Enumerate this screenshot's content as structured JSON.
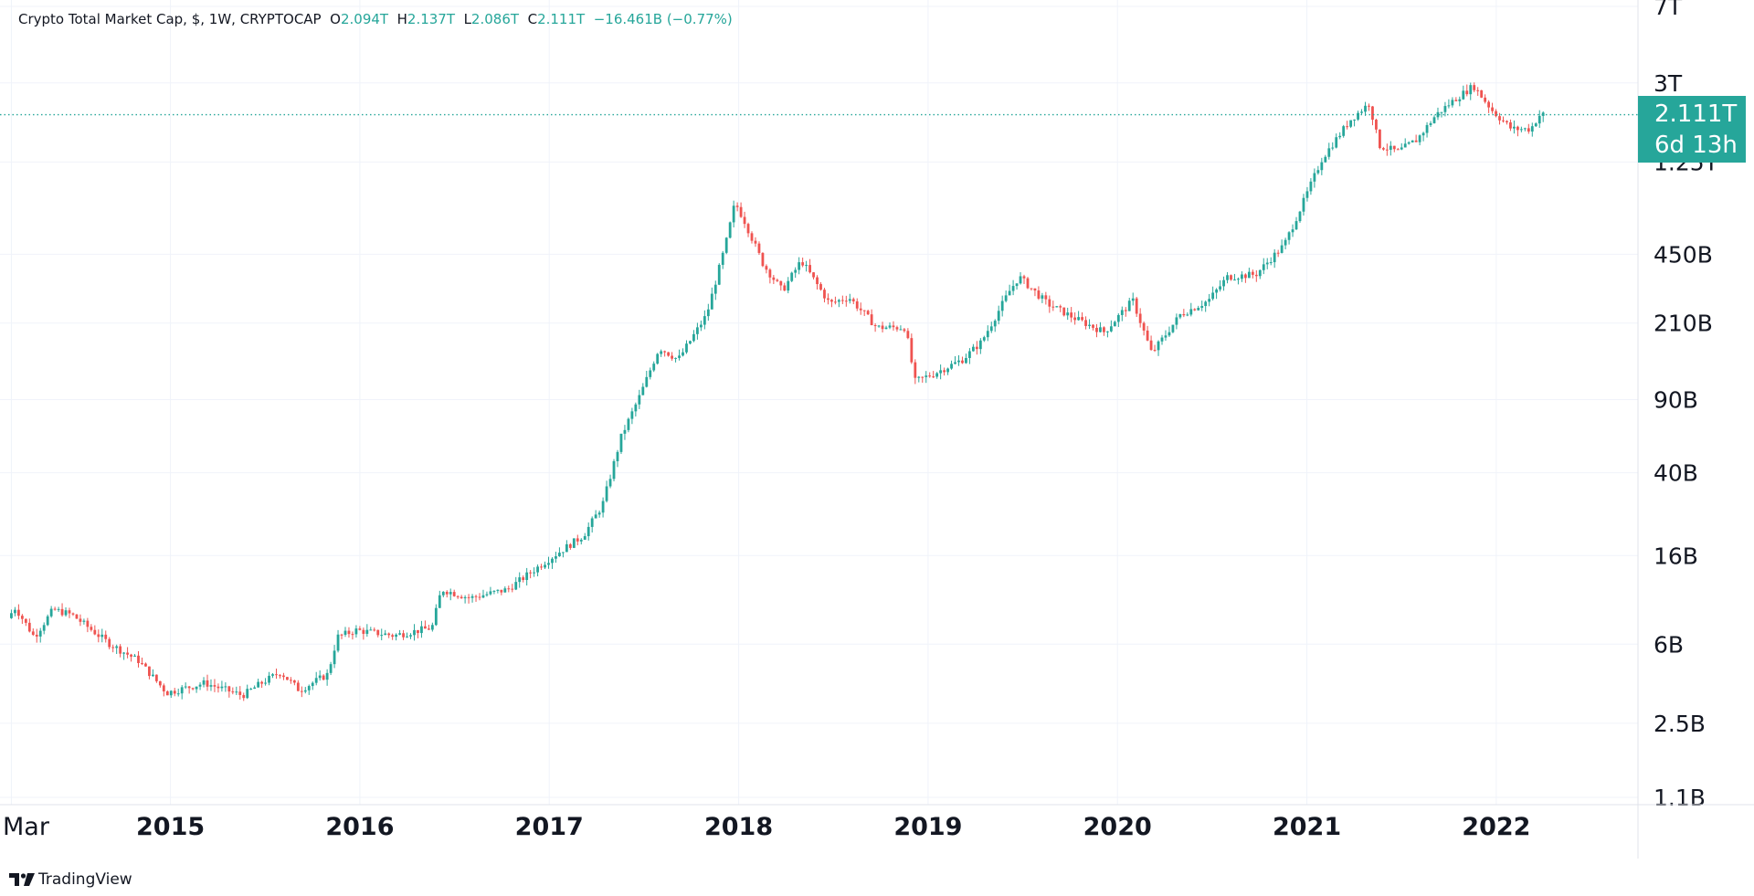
{
  "header": {
    "symbol_title": "Crypto Total Market Cap, $, 1W, CRYPTOCAP",
    "o_key": "O",
    "o_val": "2.094T",
    "h_key": "H",
    "h_val": "2.137T",
    "l_key": "L",
    "l_val": "2.086T",
    "c_key": "C",
    "c_val": "2.111T",
    "change": "−16.461B (−0.77%)"
  },
  "price_label": {
    "value": "2.111T",
    "countdown": "6d 13h"
  },
  "footer": {
    "brand": "TradingView"
  },
  "colors": {
    "up": "#26a69a",
    "down": "#ef5350",
    "grid": "#f0f3fa",
    "axis_text": "#131722",
    "dotted_line": "#26a69a"
  },
  "chart_data": {
    "type": "candlestick",
    "title": "Crypto Total Market Cap, $, 1W, CRYPTOCAP",
    "scale": "log",
    "ylim": [
      1000000000,
      7000000000000
    ],
    "y_ticks": [
      {
        "label": "7T",
        "value": 7000000000000
      },
      {
        "label": "3T",
        "value": 3000000000000
      },
      {
        "label": "1.25T",
        "value": 1250000000000
      },
      {
        "label": "450B",
        "value": 450000000000
      },
      {
        "label": "210B",
        "value": 210000000000
      },
      {
        "label": "90B",
        "value": 90000000000
      },
      {
        "label": "40B",
        "value": 40000000000
      },
      {
        "label": "16B",
        "value": 16000000000
      },
      {
        "label": "6B",
        "value": 6000000000
      },
      {
        "label": "2.5B",
        "value": 2500000000
      },
      {
        "label": "1.1B",
        "value": 1100000000
      }
    ],
    "x_range": [
      2014.15,
      2022.45
    ],
    "x_ticks": [
      {
        "label": "Mar",
        "value": 2014.16
      },
      {
        "label": "2015",
        "value": 2015.0
      },
      {
        "label": "2016",
        "value": 2016.0
      },
      {
        "label": "2017",
        "value": 2017.0
      },
      {
        "label": "2018",
        "value": 2018.0
      },
      {
        "label": "2019",
        "value": 2019.0
      },
      {
        "label": "2020",
        "value": 2020.0
      },
      {
        "label": "2021",
        "value": 2021.0
      },
      {
        "label": "2022",
        "value": 2022.0
      }
    ],
    "last_price": 2111000000000,
    "path_points": [
      [
        2014.16,
        8000000000
      ],
      [
        2014.2,
        9000000000
      ],
      [
        2014.3,
        6500000000
      ],
      [
        2014.4,
        8800000000
      ],
      [
        2014.5,
        8300000000
      ],
      [
        2014.7,
        6000000000
      ],
      [
        2014.85,
        5000000000
      ],
      [
        2015.0,
        3500000000
      ],
      [
        2015.2,
        3900000000
      ],
      [
        2015.4,
        3400000000
      ],
      [
        2015.5,
        3900000000
      ],
      [
        2015.6,
        4400000000
      ],
      [
        2015.7,
        3600000000
      ],
      [
        2015.85,
        4300000000
      ],
      [
        2015.9,
        6500000000
      ],
      [
        2016.0,
        7000000000
      ],
      [
        2016.2,
        6600000000
      ],
      [
        2016.4,
        7200000000
      ],
      [
        2016.45,
        11000000000
      ],
      [
        2016.6,
        10000000000
      ],
      [
        2016.8,
        11000000000
      ],
      [
        2017.0,
        15000000000
      ],
      [
        2017.2,
        20000000000
      ],
      [
        2017.3,
        28000000000
      ],
      [
        2017.4,
        60000000000
      ],
      [
        2017.5,
        95000000000
      ],
      [
        2017.6,
        160000000000
      ],
      [
        2017.7,
        140000000000
      ],
      [
        2017.85,
        230000000000
      ],
      [
        2017.95,
        500000000000
      ],
      [
        2018.0,
        800000000000
      ],
      [
        2018.05,
        650000000000
      ],
      [
        2018.15,
        400000000000
      ],
      [
        2018.25,
        300000000000
      ],
      [
        2018.35,
        420000000000
      ],
      [
        2018.5,
        260000000000
      ],
      [
        2018.6,
        280000000000
      ],
      [
        2018.75,
        200000000000
      ],
      [
        2018.9,
        200000000000
      ],
      [
        2018.95,
        110000000000
      ],
      [
        2019.05,
        120000000000
      ],
      [
        2019.2,
        140000000000
      ],
      [
        2019.3,
        170000000000
      ],
      [
        2019.45,
        300000000000
      ],
      [
        2019.5,
        350000000000
      ],
      [
        2019.65,
        260000000000
      ],
      [
        2019.8,
        220000000000
      ],
      [
        2019.95,
        190000000000
      ],
      [
        2020.1,
        270000000000
      ],
      [
        2020.2,
        150000000000
      ],
      [
        2020.35,
        230000000000
      ],
      [
        2020.5,
        270000000000
      ],
      [
        2020.6,
        350000000000
      ],
      [
        2020.75,
        360000000000
      ],
      [
        2020.9,
        500000000000
      ],
      [
        2021.0,
        800000000000
      ],
      [
        2021.1,
        1300000000000
      ],
      [
        2021.25,
        2000000000000
      ],
      [
        2021.35,
        2400000000000
      ],
      [
        2021.4,
        1500000000000
      ],
      [
        2021.5,
        1400000000000
      ],
      [
        2021.6,
        1600000000000
      ],
      [
        2021.7,
        2100000000000
      ],
      [
        2021.8,
        2500000000000
      ],
      [
        2021.9,
        2900000000000
      ],
      [
        2022.0,
        2200000000000
      ],
      [
        2022.1,
        1800000000000
      ],
      [
        2022.2,
        1800000000000
      ],
      [
        2022.25,
        2111000000000
      ]
    ]
  }
}
